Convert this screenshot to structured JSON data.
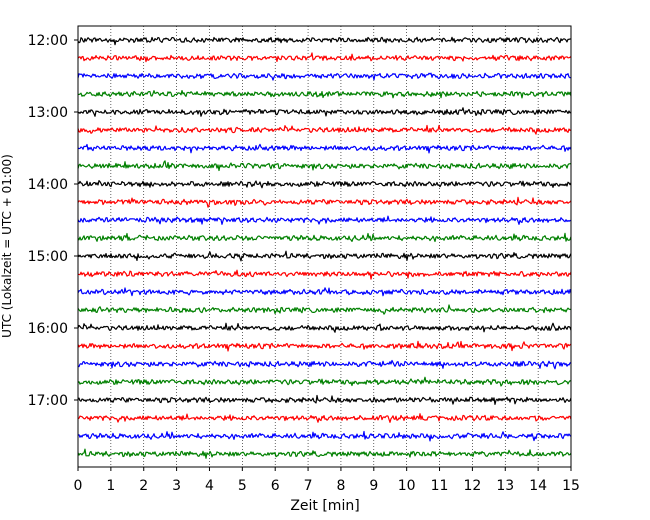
{
  "chart_data": {
    "type": "line",
    "subtype": "helicorder",
    "xlabel": "Zeit  [min]",
    "ylabel": "UTC (Lokalzeit = UTC + 01:00)",
    "xlim": [
      0,
      15
    ],
    "x_ticks": [
      0,
      1,
      2,
      3,
      4,
      5,
      6,
      7,
      8,
      9,
      10,
      11,
      12,
      13,
      14,
      15
    ],
    "x_tick_labels": [
      "0",
      "1",
      "2",
      "3",
      "4",
      "5",
      "6",
      "7",
      "8",
      "9",
      "10",
      "11",
      "12",
      "13",
      "14",
      "15"
    ],
    "y_tick_labels": [
      "12:00",
      "13:00",
      "14:00",
      "15:00",
      "16:00",
      "17:00"
    ],
    "trace_interval_minutes": 15,
    "trace_count": 24,
    "trace_colors": [
      "#000000",
      "#ff0000",
      "#0000ff",
      "#008000"
    ],
    "grid": "vertical dotted lines at each minute"
  }
}
